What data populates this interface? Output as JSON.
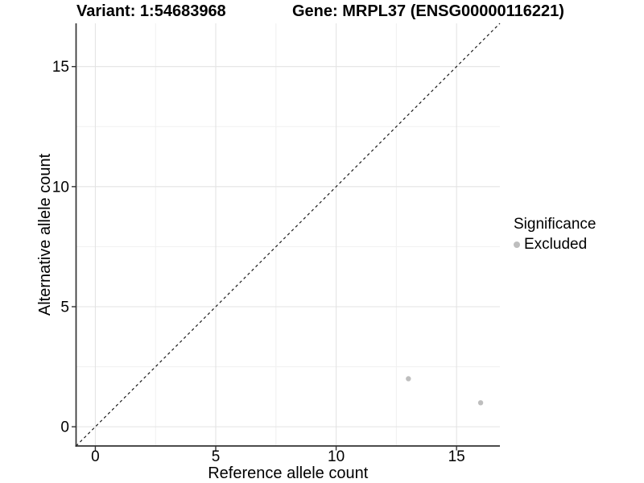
{
  "figure": {
    "title_left": "Variant: 1:54683968",
    "title_right": "Gene: MRPL37 (ENSG00000116221)"
  },
  "chart_data": {
    "type": "scatter",
    "title": "Variant: 1:54683968   Gene: MRPL37 (ENSG00000116221)",
    "xlabel": "Reference allele count",
    "ylabel": "Alternative allele count",
    "xlim": [
      -0.8,
      16.8
    ],
    "ylim": [
      -0.8,
      16.8
    ],
    "x_ticks": [
      0,
      5,
      10,
      15
    ],
    "y_ticks": [
      0,
      5,
      10,
      15
    ],
    "x_minor_ticks": [
      2.5,
      7.5,
      12.5
    ],
    "y_minor_ticks": [
      2.5,
      7.5,
      12.5
    ],
    "grid": "major+minor",
    "identity_line": {
      "equation": "y = x",
      "style": "dashed"
    },
    "series": [
      {
        "name": "Excluded",
        "points": [
          [
            13,
            2
          ],
          [
            16,
            1
          ]
        ]
      }
    ],
    "legend": {
      "title": "Significance",
      "position": "right",
      "items": [
        {
          "label": "Excluded",
          "color": "#bebebe"
        }
      ]
    },
    "colors": {
      "point": "#bebebe",
      "grid_major": "#e3e3e3",
      "grid_minor": "#f0f0f0",
      "axis_line": "#333333",
      "dashed_line": "#1a1a1a",
      "text": "#000000"
    }
  }
}
